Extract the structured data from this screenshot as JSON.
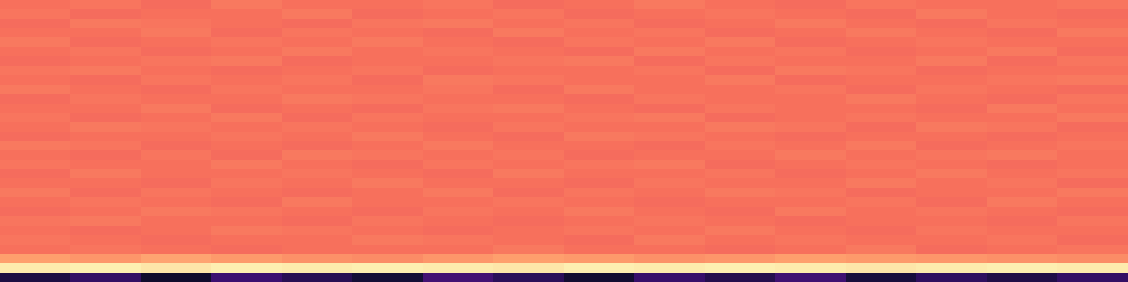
{
  "chart_data": {
    "type": "heatmap",
    "color": "magma",
    "tick_labels": false,
    "color_range": [
      0,
      1
    ],
    "cells": [
      [
        0.7,
        0.71,
        0.69,
        0.72,
        0.7,
        0.7,
        0.71,
        0.69,
        0.7,
        0.72,
        0.7,
        0.69,
        0.71,
        0.7,
        0.7,
        0.71
      ],
      [
        0.71,
        0.69,
        0.7,
        0.7,
        0.72,
        0.69,
        0.7,
        0.71,
        0.69,
        0.7,
        0.71,
        0.7,
        0.69,
        0.72,
        0.7,
        0.69
      ],
      [
        0.69,
        0.72,
        0.71,
        0.7,
        0.69,
        0.71,
        0.72,
        0.7,
        0.71,
        0.69,
        0.7,
        0.72,
        0.7,
        0.69,
        0.71,
        0.7
      ],
      [
        0.7,
        0.7,
        0.72,
        0.69,
        0.71,
        0.7,
        0.69,
        0.72,
        0.7,
        0.71,
        0.69,
        0.7,
        0.72,
        0.7,
        0.69,
        0.72
      ],
      [
        0.72,
        0.69,
        0.7,
        0.71,
        0.7,
        0.72,
        0.7,
        0.69,
        0.71,
        0.7,
        0.72,
        0.69,
        0.7,
        0.71,
        0.7,
        0.7
      ],
      [
        0.7,
        0.71,
        0.69,
        0.7,
        0.72,
        0.7,
        0.71,
        0.7,
        0.69,
        0.72,
        0.7,
        0.71,
        0.69,
        0.7,
        0.72,
        0.69
      ],
      [
        0.69,
        0.7,
        0.71,
        0.72,
        0.69,
        0.7,
        0.7,
        0.71,
        0.72,
        0.69,
        0.71,
        0.7,
        0.7,
        0.72,
        0.69,
        0.71
      ],
      [
        0.71,
        0.72,
        0.7,
        0.69,
        0.7,
        0.71,
        0.69,
        0.7,
        0.7,
        0.71,
        0.69,
        0.72,
        0.71,
        0.69,
        0.7,
        0.7
      ],
      [
        0.7,
        0.69,
        0.71,
        0.7,
        0.71,
        0.69,
        0.72,
        0.71,
        0.7,
        0.7,
        0.72,
        0.69,
        0.7,
        0.7,
        0.71,
        0.72
      ],
      [
        0.72,
        0.7,
        0.69,
        0.71,
        0.7,
        0.7,
        0.71,
        0.69,
        0.72,
        0.7,
        0.7,
        0.71,
        0.69,
        0.71,
        0.7,
        0.69
      ],
      [
        0.69,
        0.71,
        0.7,
        0.7,
        0.72,
        0.71,
        0.7,
        0.7,
        0.69,
        0.71,
        0.7,
        0.7,
        0.72,
        0.7,
        0.69,
        0.71
      ],
      [
        0.7,
        0.7,
        0.72,
        0.69,
        0.7,
        0.69,
        0.71,
        0.72,
        0.7,
        0.69,
        0.71,
        0.7,
        0.7,
        0.69,
        0.72,
        0.7
      ],
      [
        0.71,
        0.69,
        0.7,
        0.72,
        0.69,
        0.71,
        0.7,
        0.7,
        0.71,
        0.72,
        0.69,
        0.7,
        0.71,
        0.7,
        0.7,
        0.72
      ],
      [
        0.7,
        0.72,
        0.71,
        0.7,
        0.71,
        0.7,
        0.69,
        0.71,
        0.7,
        0.7,
        0.72,
        0.71,
        0.69,
        0.72,
        0.71,
        0.69
      ],
      [
        0.69,
        0.7,
        0.7,
        0.71,
        0.7,
        0.72,
        0.7,
        0.69,
        0.72,
        0.71,
        0.7,
        0.69,
        0.7,
        0.7,
        0.69,
        0.7
      ],
      [
        0.72,
        0.71,
        0.69,
        0.7,
        0.69,
        0.7,
        0.72,
        0.7,
        0.7,
        0.69,
        0.71,
        0.7,
        0.72,
        0.69,
        0.7,
        0.71
      ],
      [
        0.7,
        0.69,
        0.71,
        0.69,
        0.72,
        0.71,
        0.7,
        0.71,
        0.69,
        0.7,
        0.7,
        0.72,
        0.7,
        0.71,
        0.72,
        0.7
      ],
      [
        0.71,
        0.7,
        0.7,
        0.72,
        0.7,
        0.69,
        0.71,
        0.7,
        0.71,
        0.72,
        0.69,
        0.7,
        0.71,
        0.7,
        0.69,
        0.7
      ],
      [
        0.69,
        0.72,
        0.7,
        0.7,
        0.71,
        0.7,
        0.69,
        0.72,
        0.7,
        0.7,
        0.71,
        0.69,
        0.7,
        0.72,
        0.7,
        0.71
      ],
      [
        0.7,
        0.7,
        0.69,
        0.71,
        0.7,
        0.72,
        0.7,
        0.7,
        0.69,
        0.71,
        0.7,
        0.7,
        0.72,
        0.7,
        0.71,
        0.69
      ],
      [
        0.72,
        0.69,
        0.71,
        0.7,
        0.69,
        0.7,
        0.72,
        0.69,
        0.71,
        0.7,
        0.72,
        0.71,
        0.69,
        0.7,
        0.7,
        0.72
      ],
      [
        0.7,
        0.71,
        0.7,
        0.69,
        0.72,
        0.7,
        0.7,
        0.71,
        0.7,
        0.69,
        0.7,
        0.7,
        0.71,
        0.69,
        0.72,
        0.7
      ],
      [
        0.69,
        0.7,
        0.72,
        0.71,
        0.7,
        0.69,
        0.71,
        0.7,
        0.72,
        0.7,
        0.69,
        0.72,
        0.7,
        0.71,
        0.7,
        0.69
      ],
      [
        0.71,
        0.72,
        0.7,
        0.7,
        0.69,
        0.71,
        0.7,
        0.69,
        0.7,
        0.71,
        0.7,
        0.69,
        0.7,
        0.7,
        0.69,
        0.71
      ],
      [
        0.7,
        0.69,
        0.7,
        0.72,
        0.71,
        0.7,
        0.69,
        0.7,
        0.71,
        0.7,
        0.72,
        0.7,
        0.69,
        0.71,
        0.7,
        0.7
      ],
      [
        0.71,
        0.7,
        0.69,
        0.7,
        0.7,
        0.72,
        0.71,
        0.7,
        0.69,
        0.72,
        0.7,
        0.71,
        0.7,
        0.7,
        0.71,
        0.69
      ],
      [
        0.7,
        0.71,
        0.7,
        0.69,
        0.7,
        0.7,
        0.7,
        0.72,
        0.7,
        0.7,
        0.69,
        0.7,
        0.72,
        0.69,
        0.7,
        0.71
      ],
      [
        0.8,
        0.78,
        0.81,
        0.79,
        0.77,
        0.76,
        0.78,
        0.8,
        0.79,
        0.77,
        0.78,
        0.8,
        0.79,
        0.78,
        0.77,
        0.76
      ],
      [
        0.96,
        0.97,
        0.95,
        0.97,
        0.96,
        0.97,
        0.96,
        0.95,
        0.97,
        0.96,
        0.97,
        0.96,
        0.95,
        0.96,
        0.97,
        0.96
      ],
      [
        0.12,
        0.18,
        0.08,
        0.2,
        0.15,
        0.1,
        0.22,
        0.16,
        0.09,
        0.19,
        0.14,
        0.21,
        0.11,
        0.17,
        0.13,
        0.18
      ]
    ]
  }
}
